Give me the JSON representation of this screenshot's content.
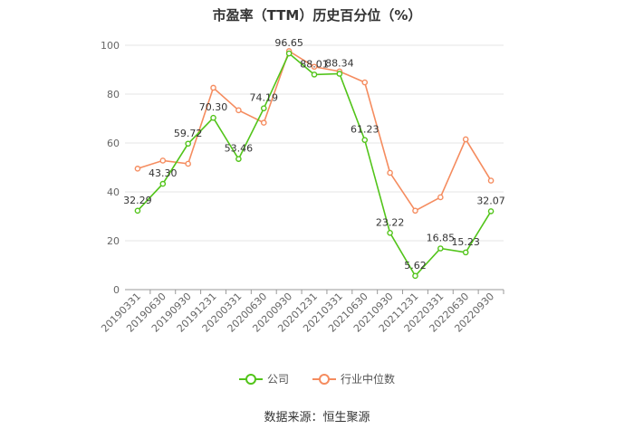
{
  "chart_data": {
    "type": "line",
    "title": "市盈率（TTM）历史百分位（%）",
    "categories": [
      "20190331",
      "20190630",
      "20190930",
      "20191231",
      "20200331",
      "20200630",
      "20200930",
      "20201231",
      "20210331",
      "20210630",
      "20210930",
      "20211231",
      "20220331",
      "20220630",
      "20220930"
    ],
    "ylim": [
      0,
      100
    ],
    "yticks": [
      0,
      20,
      40,
      60,
      80,
      100
    ],
    "grid": true,
    "legend_position": "bottom",
    "series": [
      {
        "name": "公司",
        "color": "#52c41a",
        "values": [
          32.29,
          43.3,
          59.72,
          70.3,
          53.46,
          74.19,
          96.65,
          88.01,
          88.34,
          61.23,
          23.22,
          5.62,
          16.85,
          15.23,
          32.07
        ],
        "labels": [
          "32.29",
          "43.30",
          "59.72",
          "70.30",
          "53.46",
          "74.19",
          "96.65",
          "88.01",
          "88.34",
          "61.23",
          "23.22",
          "5.62",
          "16.85",
          "15.23",
          "32.07"
        ]
      },
      {
        "name": "行业中位数",
        "color": "#f58c5f",
        "values": [
          49.5,
          52.8,
          51.5,
          82.6,
          73.4,
          68.3,
          97.6,
          91.2,
          89.3,
          84.8,
          47.8,
          32.3,
          37.8,
          61.5,
          44.6
        ]
      }
    ]
  },
  "source": "数据来源：恒生聚源"
}
